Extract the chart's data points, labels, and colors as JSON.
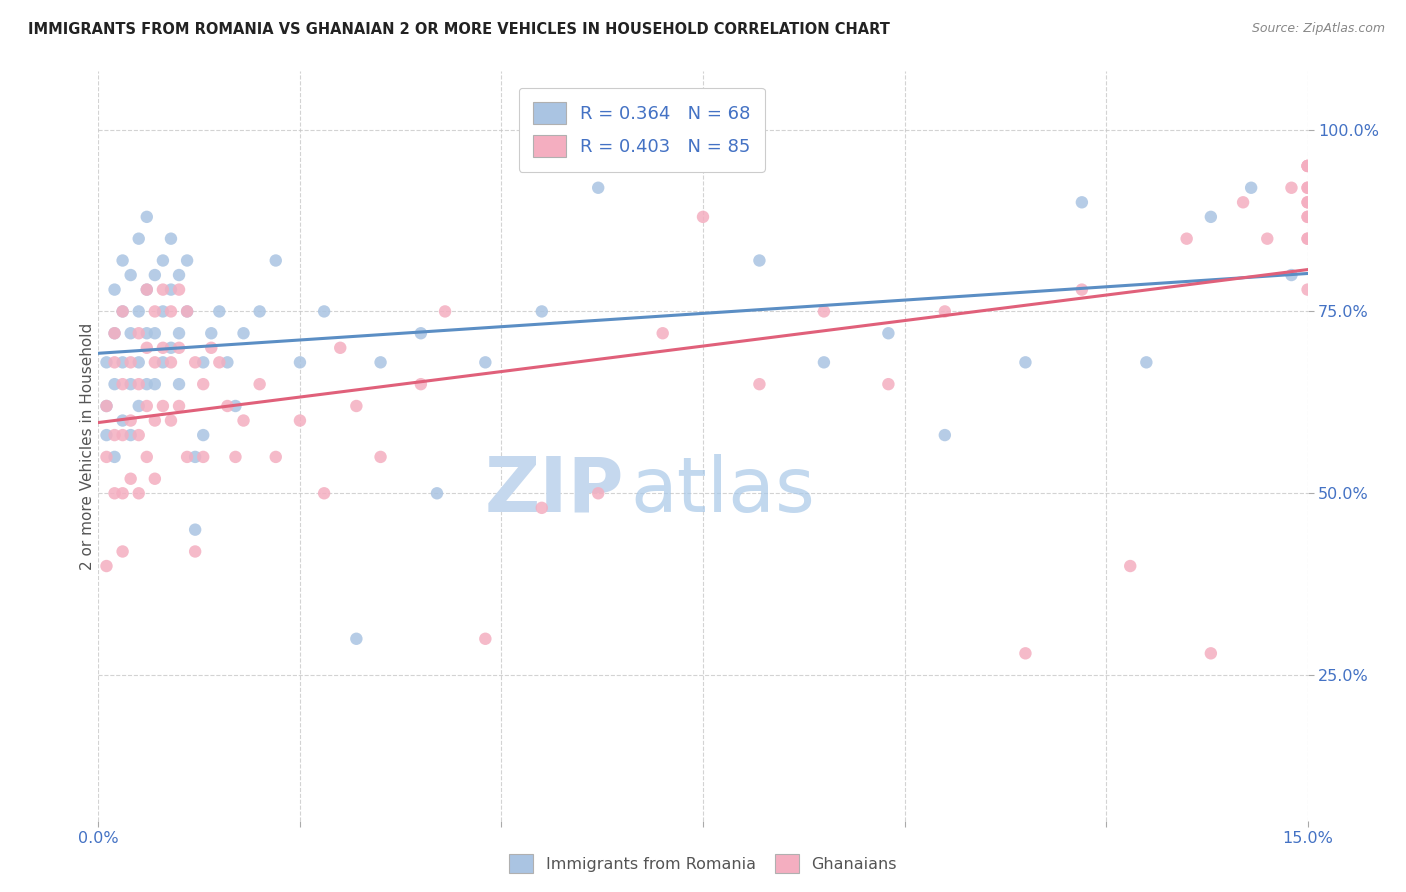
{
  "title": "IMMIGRANTS FROM ROMANIA VS GHANAIAN 2 OR MORE VEHICLES IN HOUSEHOLD CORRELATION CHART",
  "source": "Source: ZipAtlas.com",
  "ylabel": "2 or more Vehicles in Household",
  "romania_R": 0.364,
  "romania_N": 68,
  "ghana_R": 0.403,
  "ghana_N": 85,
  "blue_color": "#aac4e2",
  "pink_color": "#f4aec0",
  "blue_line_color": "#5b8ec4",
  "pink_line_color": "#e0607a",
  "legend_text_color": "#4472c4",
  "axis_tick_color": "#4472c4",
  "background_color": "#ffffff",
  "grid_color": "#c8c8c8",
  "watermark_zip_color": "#c5d8ee",
  "watermark_atlas_color": "#a8c8e8",
  "xlim": [
    0.0,
    0.15
  ],
  "ylim": [
    0.05,
    1.08
  ],
  "y_tick_vals": [
    0.25,
    0.5,
    0.75,
    1.0
  ],
  "x_tick_positions": [
    0.0,
    0.025,
    0.05,
    0.075,
    0.1,
    0.125,
    0.15
  ],
  "romania_x": [
    0.001,
    0.001,
    0.001,
    0.002,
    0.002,
    0.002,
    0.002,
    0.003,
    0.003,
    0.003,
    0.003,
    0.004,
    0.004,
    0.004,
    0.004,
    0.005,
    0.005,
    0.005,
    0.005,
    0.006,
    0.006,
    0.006,
    0.006,
    0.007,
    0.007,
    0.007,
    0.008,
    0.008,
    0.008,
    0.009,
    0.009,
    0.009,
    0.01,
    0.01,
    0.01,
    0.011,
    0.011,
    0.012,
    0.012,
    0.013,
    0.013,
    0.014,
    0.015,
    0.016,
    0.017,
    0.018,
    0.02,
    0.022,
    0.025,
    0.028,
    0.032,
    0.035,
    0.04,
    0.042,
    0.048,
    0.055,
    0.062,
    0.07,
    0.082,
    0.09,
    0.098,
    0.105,
    0.115,
    0.122,
    0.13,
    0.138,
    0.143,
    0.148
  ],
  "romania_y": [
    0.62,
    0.68,
    0.58,
    0.72,
    0.65,
    0.55,
    0.78,
    0.75,
    0.68,
    0.6,
    0.82,
    0.72,
    0.65,
    0.58,
    0.8,
    0.75,
    0.68,
    0.62,
    0.85,
    0.78,
    0.72,
    0.65,
    0.88,
    0.8,
    0.72,
    0.65,
    0.82,
    0.75,
    0.68,
    0.85,
    0.78,
    0.7,
    0.8,
    0.72,
    0.65,
    0.82,
    0.75,
    0.55,
    0.45,
    0.68,
    0.58,
    0.72,
    0.75,
    0.68,
    0.62,
    0.72,
    0.75,
    0.82,
    0.68,
    0.75,
    0.3,
    0.68,
    0.72,
    0.5,
    0.68,
    0.75,
    0.92,
    0.98,
    0.82,
    0.68,
    0.72,
    0.58,
    0.68,
    0.9,
    0.68,
    0.88,
    0.92,
    0.8
  ],
  "ghana_x": [
    0.001,
    0.001,
    0.001,
    0.002,
    0.002,
    0.002,
    0.002,
    0.003,
    0.003,
    0.003,
    0.003,
    0.003,
    0.004,
    0.004,
    0.004,
    0.005,
    0.005,
    0.005,
    0.005,
    0.006,
    0.006,
    0.006,
    0.006,
    0.007,
    0.007,
    0.007,
    0.007,
    0.008,
    0.008,
    0.008,
    0.009,
    0.009,
    0.009,
    0.01,
    0.01,
    0.01,
    0.011,
    0.011,
    0.012,
    0.012,
    0.013,
    0.013,
    0.014,
    0.015,
    0.016,
    0.017,
    0.018,
    0.02,
    0.022,
    0.025,
    0.028,
    0.03,
    0.032,
    0.035,
    0.04,
    0.043,
    0.048,
    0.055,
    0.062,
    0.07,
    0.075,
    0.082,
    0.09,
    0.098,
    0.105,
    0.115,
    0.122,
    0.128,
    0.135,
    0.138,
    0.142,
    0.145,
    0.148,
    0.15,
    0.15,
    0.15,
    0.15,
    0.15,
    0.15,
    0.15,
    0.15,
    0.15,
    0.15,
    0.15,
    0.15
  ],
  "ghana_y": [
    0.62,
    0.55,
    0.4,
    0.68,
    0.58,
    0.5,
    0.72,
    0.65,
    0.58,
    0.5,
    0.42,
    0.75,
    0.68,
    0.6,
    0.52,
    0.72,
    0.65,
    0.58,
    0.5,
    0.78,
    0.7,
    0.62,
    0.55,
    0.75,
    0.68,
    0.6,
    0.52,
    0.78,
    0.7,
    0.62,
    0.75,
    0.68,
    0.6,
    0.78,
    0.7,
    0.62,
    0.75,
    0.55,
    0.68,
    0.42,
    0.65,
    0.55,
    0.7,
    0.68,
    0.62,
    0.55,
    0.6,
    0.65,
    0.55,
    0.6,
    0.5,
    0.7,
    0.62,
    0.55,
    0.65,
    0.75,
    0.3,
    0.48,
    0.5,
    0.72,
    0.88,
    0.65,
    0.75,
    0.65,
    0.75,
    0.28,
    0.78,
    0.4,
    0.85,
    0.28,
    0.9,
    0.85,
    0.92,
    0.78,
    0.88,
    0.95,
    0.9,
    0.85,
    0.92,
    0.88,
    0.95,
    0.9,
    0.85,
    0.92,
    0.95
  ]
}
